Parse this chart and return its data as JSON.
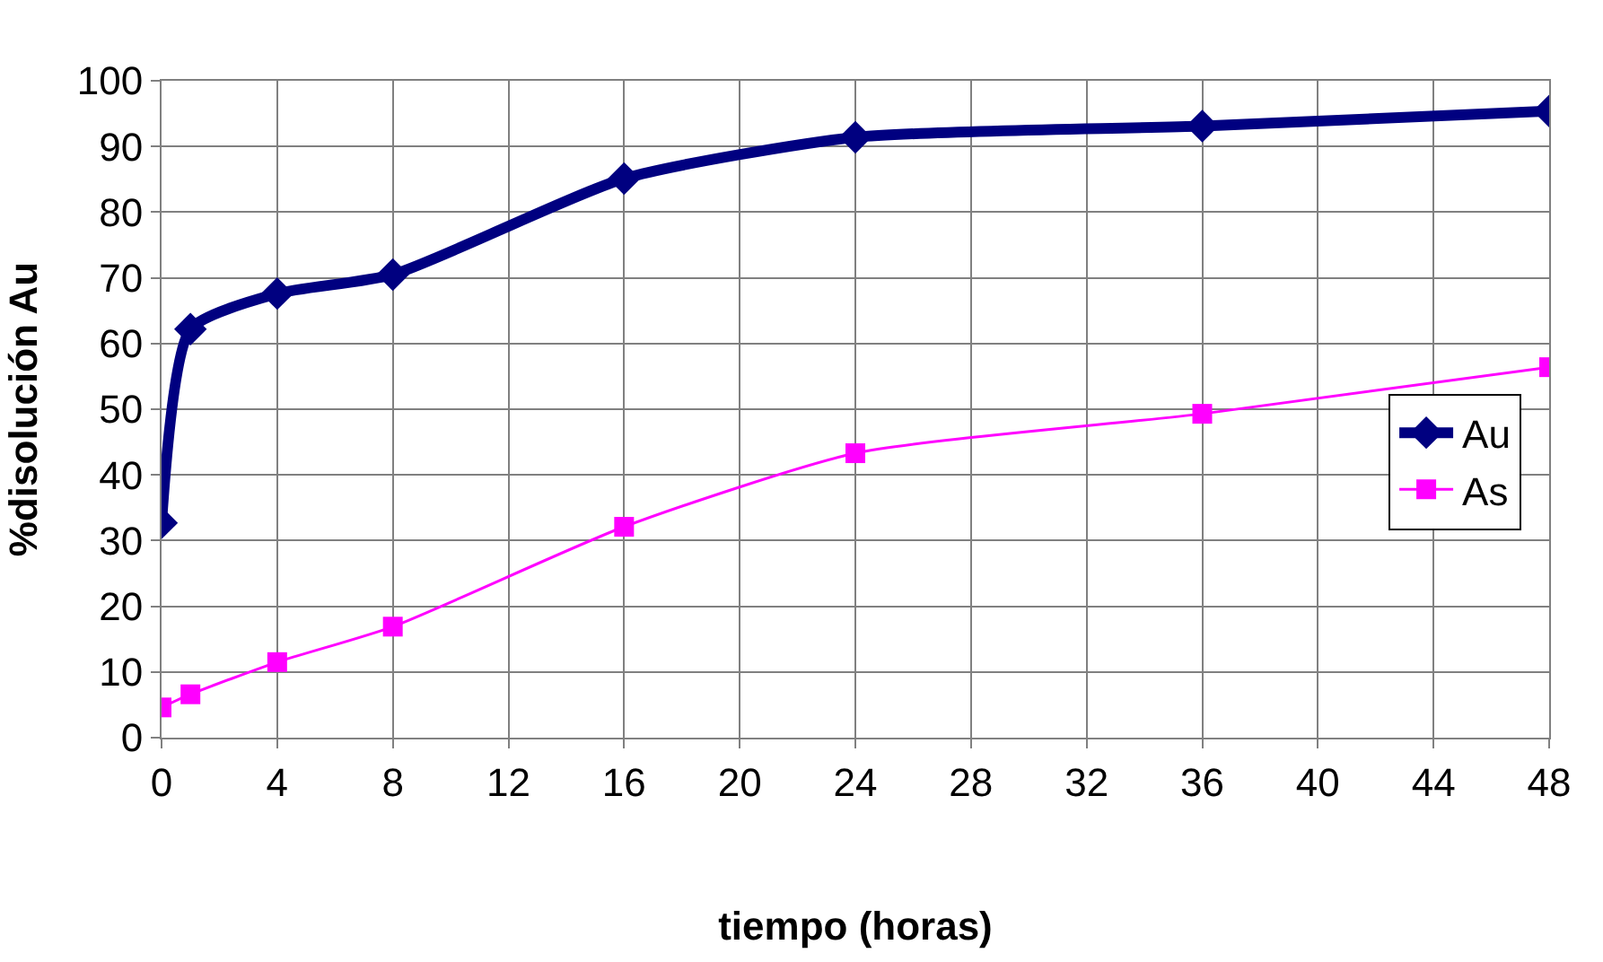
{
  "chart_data": {
    "type": "line",
    "xlabel": "tiempo (horas)",
    "ylabel": "%disolución Au",
    "x": [
      0,
      1,
      4,
      8,
      16,
      24,
      36,
      48
    ],
    "series": [
      {
        "name": "Au",
        "color": "#000080",
        "marker": "diamond",
        "values": [
          32.7,
          62.2,
          67.6,
          70.5,
          85.1,
          91.4,
          93.1,
          95.4
        ]
      },
      {
        "name": "As",
        "color": "#ff00ff",
        "marker": "square",
        "values": [
          4.6,
          6.6,
          11.5,
          16.9,
          32.1,
          43.3,
          49.3,
          56.4
        ]
      }
    ],
    "xlim": [
      0,
      48
    ],
    "xticks": [
      0,
      4,
      8,
      12,
      16,
      20,
      24,
      28,
      32,
      36,
      40,
      44,
      48
    ],
    "ylim": [
      0,
      100
    ],
    "yticks": [
      0,
      10,
      20,
      30,
      40,
      50,
      60,
      70,
      80,
      90,
      100
    ],
    "grid": true,
    "legend": "right",
    "line_style": "solid"
  }
}
